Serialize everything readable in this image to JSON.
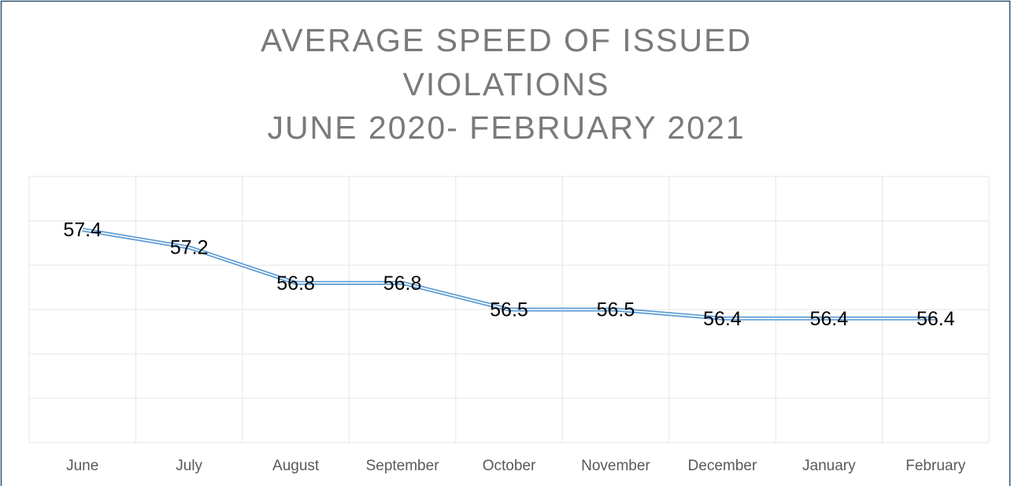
{
  "chart_data": {
    "type": "line",
    "title": [
      "AVERAGE SPEED OF ISSUED",
      "VIOLATIONS",
      "JUNE 2020- FEBRUARY 2021"
    ],
    "categories": [
      "June",
      "July",
      "August",
      "September",
      "October",
      "November",
      "December",
      "January",
      "February"
    ],
    "values": [
      57.4,
      57.2,
      56.8,
      56.8,
      56.5,
      56.5,
      56.4,
      56.4,
      56.4
    ],
    "color": "#5b9bd5",
    "ylim": [
      55,
      58
    ],
    "yticks": [
      55,
      55.5,
      56,
      56.5,
      57,
      57.5,
      58
    ],
    "grid": true
  }
}
